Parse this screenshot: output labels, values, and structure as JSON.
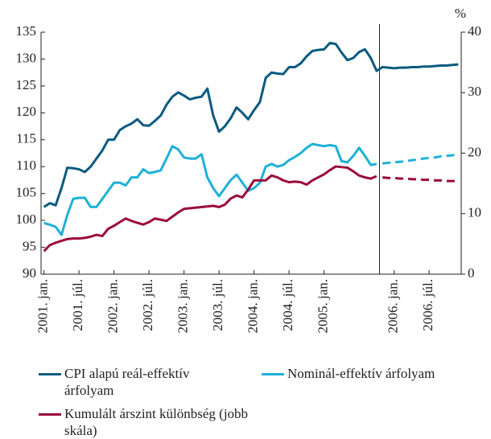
{
  "chart_data": {
    "type": "line",
    "y2_label": "%",
    "categories": [
      "2001. jan.",
      null,
      null,
      null,
      null,
      null,
      "2001. júl.",
      null,
      null,
      null,
      null,
      null,
      "2002. jan.",
      null,
      null,
      null,
      null,
      null,
      "2002. júl.",
      null,
      null,
      null,
      null,
      null,
      "2003. jan.",
      null,
      null,
      null,
      null,
      null,
      "2003. júl.",
      null,
      null,
      null,
      null,
      null,
      "2004. jan.",
      null,
      null,
      null,
      null,
      null,
      "2004. júl.",
      null,
      null,
      null,
      null,
      null,
      "2005. jan.",
      null,
      null,
      null,
      null,
      null,
      null,
      null,
      null,
      null,
      null,
      null,
      "2006. jan.",
      null,
      null,
      null,
      null,
      null,
      "2006. júl.",
      null,
      null,
      null,
      null,
      null
    ],
    "forecast_from": 58,
    "divider_at": 57,
    "ylim": [
      90,
      135
    ],
    "yticks": [
      90,
      95,
      100,
      105,
      110,
      115,
      120,
      125,
      130,
      135
    ],
    "y2lim": [
      0,
      40
    ],
    "y2ticks": [
      0,
      10,
      20,
      30,
      40
    ],
    "series": [
      {
        "name": "CPI alapú reál-effektív árfolyam",
        "color": "#0b5a80",
        "dashed_forecast": false,
        "values": [
          102.5,
          103.2,
          102.8,
          106,
          109.8,
          109.7,
          109.5,
          109,
          110,
          111.5,
          113,
          115,
          115,
          116.8,
          117.5,
          118,
          118.8,
          117.7,
          117.6,
          118.5,
          119.5,
          121.5,
          123,
          123.8,
          123.2,
          122.5,
          122.8,
          123,
          124.5,
          119.5,
          116.5,
          117.5,
          119,
          121,
          120,
          118.8,
          120.5,
          122,
          126.5,
          127.5,
          127.3,
          127.2,
          128.5,
          128.5,
          129.2,
          130.5,
          131.5,
          131.7,
          131.8,
          133,
          132.8,
          131.2,
          129.8,
          130.2,
          131.3,
          131.8,
          130.2,
          127.8,
          128.5,
          128.4,
          128.3,
          128.4,
          128.4,
          128.5,
          128.5,
          128.6,
          128.6,
          128.7,
          128.8,
          128.8,
          128.9,
          129
        ]
      },
      {
        "name": "Nominál-effektív árfolyam",
        "color": "#1fb0d8",
        "dashed_forecast": true,
        "values": [
          99.5,
          99.2,
          98.8,
          97.3,
          101,
          104,
          104.2,
          104.2,
          102.5,
          102.5,
          104,
          105.5,
          107,
          107,
          106.5,
          108,
          108,
          109.5,
          108.8,
          109,
          109.3,
          111.5,
          113.8,
          113.2,
          111.7,
          111.5,
          111.5,
          112.3,
          108,
          106,
          104.5,
          106,
          107.5,
          108.5,
          107,
          105.5,
          106,
          107,
          110,
          110.5,
          110,
          110.3,
          111.2,
          111.8,
          112.5,
          113.5,
          114.2,
          114,
          113.8,
          114,
          113.8,
          111,
          110.8,
          112,
          113.5,
          112,
          110.3,
          110.5,
          110.6,
          110.7,
          110.8,
          110.9,
          111,
          111.2,
          111.3,
          111.5,
          111.6,
          111.7,
          111.9,
          112,
          112.1,
          112.3
        ]
      },
      {
        "name": "Kumulált árszint különbség (jobb skála)",
        "color": "#9b0a3e",
        "axis": "y2",
        "dashed_forecast": true,
        "values": [
          3.8,
          4.8,
          5.2,
          5.5,
          5.8,
          5.9,
          5.9,
          6,
          6.2,
          6.5,
          6.3,
          7.5,
          8,
          8.6,
          9.2,
          8.8,
          8.5,
          8.2,
          8.6,
          9.2,
          9,
          8.8,
          9.5,
          10.2,
          10.8,
          10.9,
          11,
          11.1,
          11.2,
          11.3,
          11.1,
          11.5,
          12.5,
          13,
          12.7,
          14,
          15.5,
          15.5,
          15.5,
          16.3,
          16,
          15.5,
          15.2,
          15.3,
          15.2,
          14.8,
          15.5,
          16,
          16.5,
          17.2,
          17.8,
          17.7,
          17.6,
          17,
          16.3,
          16,
          15.8,
          16.2,
          16,
          15.9,
          15.9,
          15.8,
          15.8,
          15.7,
          15.7,
          15.6,
          15.6,
          15.5,
          15.5,
          15.4,
          15.4,
          15.3
        ]
      }
    ]
  }
}
